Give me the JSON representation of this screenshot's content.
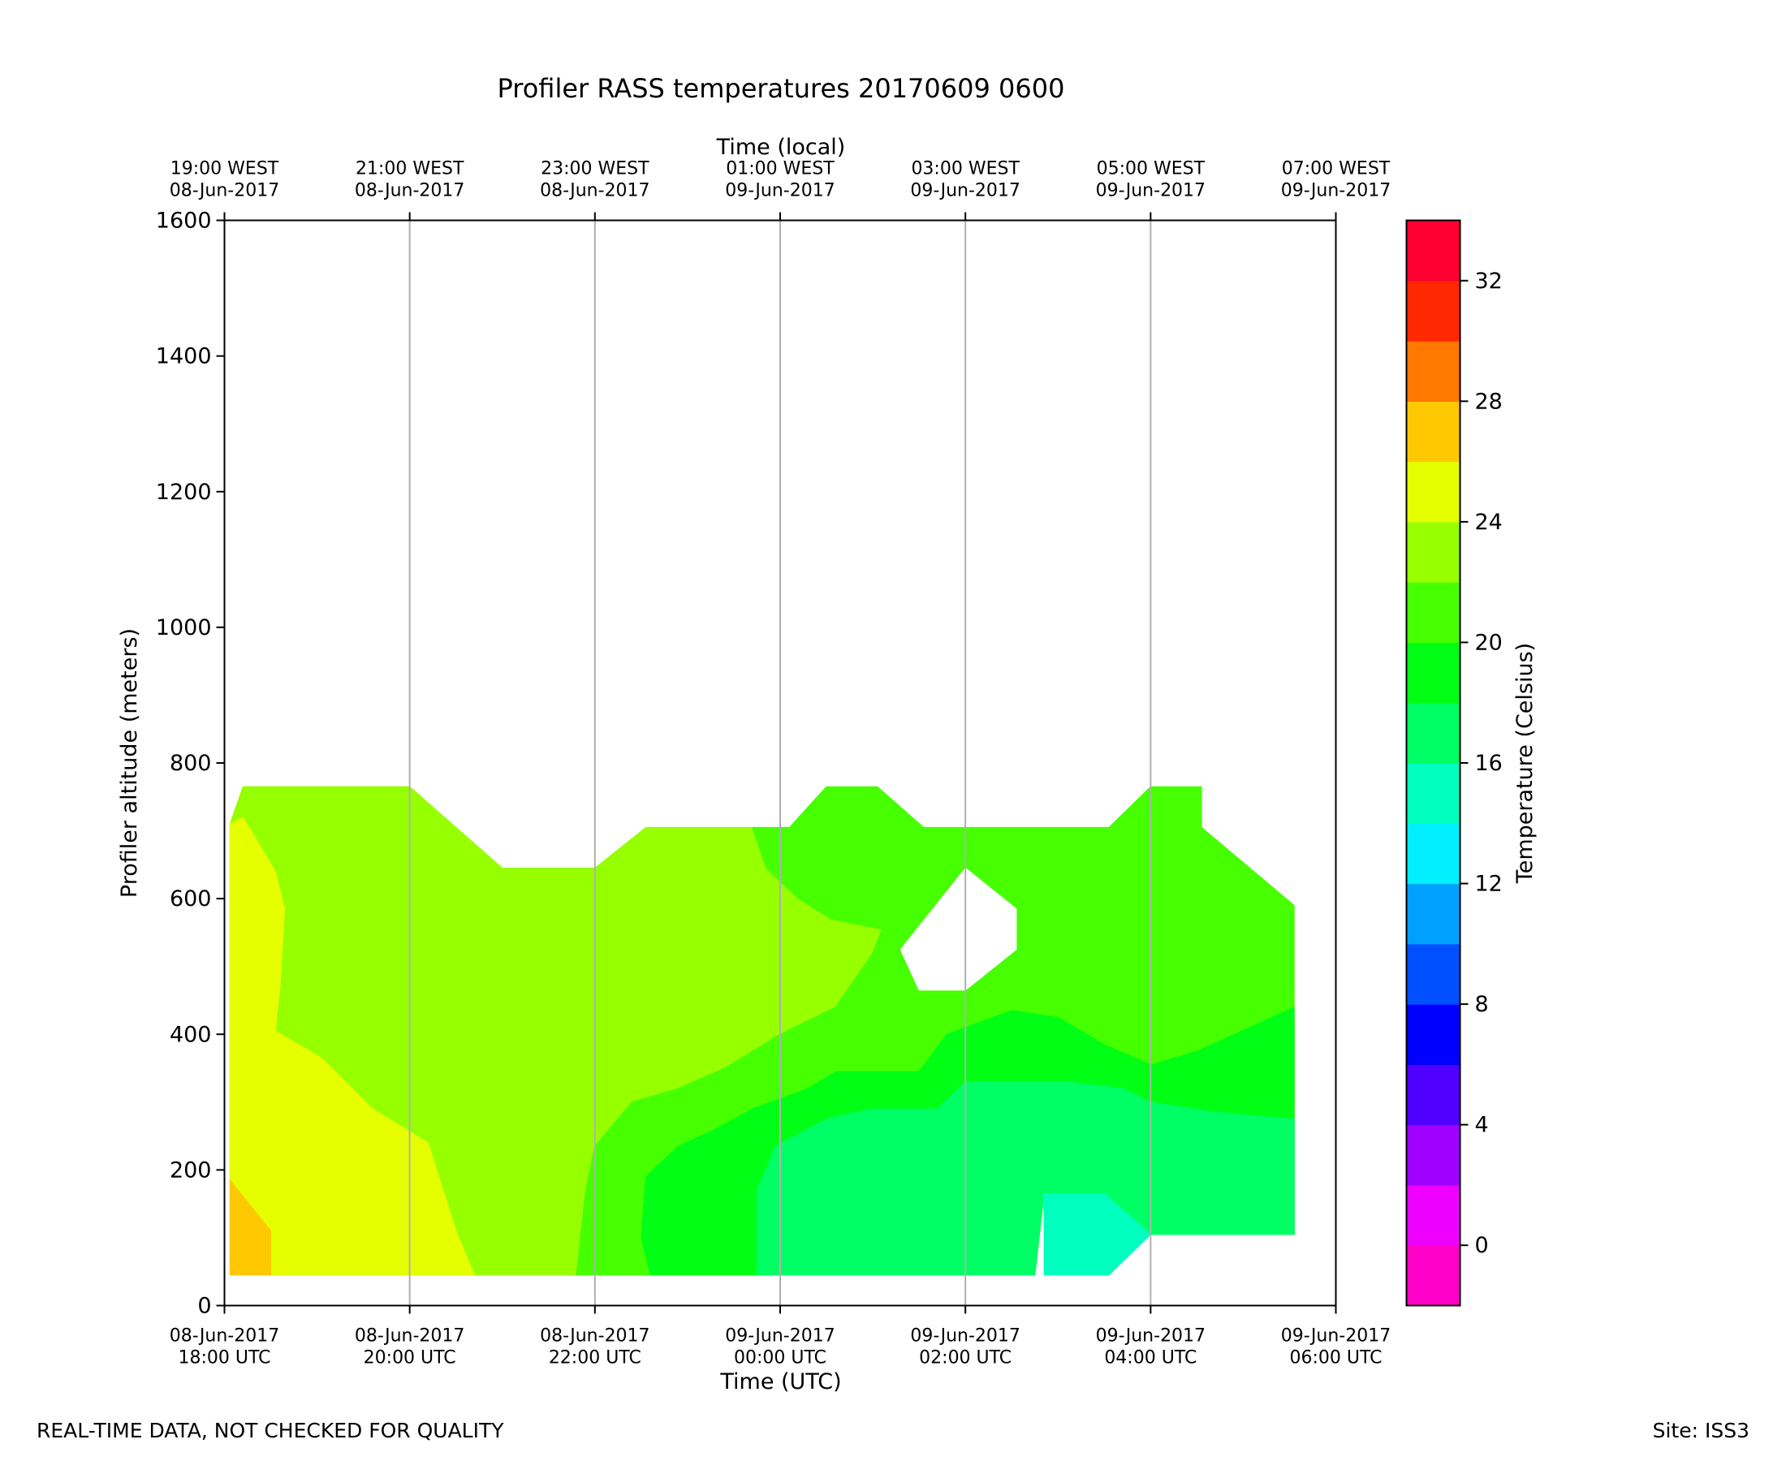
{
  "chart_data": {
    "type": "contour",
    "title": "Profiler RASS temperatures 20170609 0600",
    "xlabel": "Time (UTC)",
    "xlabel_top": "Time (local)",
    "ylabel": "Profiler altitude (meters)",
    "ylim": [
      0,
      1600
    ],
    "xlim_hours_since_start": [
      0,
      12
    ],
    "yticks": [
      0,
      200,
      400,
      600,
      800,
      1000,
      1200,
      1400,
      1600
    ],
    "xticks_bottom": [
      {
        "h": 0,
        "date": "08-Jun-2017",
        "time": "18:00 UTC"
      },
      {
        "h": 2,
        "date": "08-Jun-2017",
        "time": "20:00 UTC"
      },
      {
        "h": 4,
        "date": "08-Jun-2017",
        "time": "22:00 UTC"
      },
      {
        "h": 6,
        "date": "09-Jun-2017",
        "time": "00:00 UTC"
      },
      {
        "h": 8,
        "date": "09-Jun-2017",
        "time": "02:00 UTC"
      },
      {
        "h": 10,
        "date": "09-Jun-2017",
        "time": "04:00 UTC"
      },
      {
        "h": 12,
        "date": "09-Jun-2017",
        "time": "06:00 UTC"
      }
    ],
    "xticks_top": [
      {
        "h": 0,
        "time": "19:00 WEST",
        "date": "08-Jun-2017"
      },
      {
        "h": 2,
        "time": "21:00 WEST",
        "date": "08-Jun-2017"
      },
      {
        "h": 4,
        "time": "23:00 WEST",
        "date": "08-Jun-2017"
      },
      {
        "h": 6,
        "time": "01:00 WEST",
        "date": "09-Jun-2017"
      },
      {
        "h": 8,
        "time": "03:00 WEST",
        "date": "09-Jun-2017"
      },
      {
        "h": 10,
        "time": "05:00 WEST",
        "date": "09-Jun-2017"
      },
      {
        "h": 12,
        "time": "07:00 WEST",
        "date": "09-Jun-2017"
      }
    ],
    "grid": "vertical",
    "colorbar": {
      "label": "Temperature (Celsius)",
      "range": [
        -2,
        34
      ],
      "tick_values": [
        0,
        4,
        8,
        12,
        16,
        20,
        24,
        28,
        32
      ],
      "levels": [
        {
          "from": -2,
          "to": 0,
          "color": "#ff00c8"
        },
        {
          "from": 0,
          "to": 2,
          "color": "#ee00ff"
        },
        {
          "from": 2,
          "to": 4,
          "color": "#a000ff"
        },
        {
          "from": 4,
          "to": 6,
          "color": "#5000ff"
        },
        {
          "from": 6,
          "to": 8,
          "color": "#0000ff"
        },
        {
          "from": 8,
          "to": 10,
          "color": "#0050ff"
        },
        {
          "from": 10,
          "to": 12,
          "color": "#00a0ff"
        },
        {
          "from": 12,
          "to": 14,
          "color": "#00f0ff"
        },
        {
          "from": 14,
          "to": 16,
          "color": "#00ffbe"
        },
        {
          "from": 16,
          "to": 18,
          "color": "#00ff64"
        },
        {
          "from": 18,
          "to": 20,
          "color": "#00ff14"
        },
        {
          "from": 20,
          "to": 22,
          "color": "#46ff00"
        },
        {
          "from": 22,
          "to": 24,
          "color": "#96ff00"
        },
        {
          "from": 24,
          "to": 26,
          "color": "#e6ff00"
        },
        {
          "from": 26,
          "to": 28,
          "color": "#ffc800"
        },
        {
          "from": 28,
          "to": 30,
          "color": "#ff7800"
        },
        {
          "from": 30,
          "to": 32,
          "color": "#ff2800"
        },
        {
          "from": 32,
          "to": 34,
          "color": "#ff0032"
        }
      ]
    },
    "regions": [
      {
        "temp_band": "22-24",
        "color": "#96ff00",
        "points": [
          [
            0.06,
            710
          ],
          [
            0.2,
            765
          ],
          [
            2.0,
            765
          ],
          [
            3.0,
            645
          ],
          [
            4.0,
            645
          ],
          [
            4.55,
            705
          ],
          [
            5.7,
            705
          ],
          [
            5.85,
            645
          ],
          [
            6.2,
            600
          ],
          [
            6.55,
            570
          ],
          [
            7.1,
            555
          ],
          [
            7.0,
            520
          ],
          [
            6.6,
            440
          ],
          [
            6.0,
            400
          ],
          [
            5.4,
            350
          ],
          [
            4.9,
            320
          ],
          [
            4.4,
            300
          ],
          [
            4.0,
            235
          ],
          [
            3.9,
            170
          ],
          [
            3.8,
            45
          ],
          [
            0.06,
            45
          ]
        ]
      },
      {
        "temp_band": "24-26",
        "color": "#e6ff00",
        "points": [
          [
            0.06,
            710
          ],
          [
            0.2,
            720
          ],
          [
            0.55,
            640
          ],
          [
            0.65,
            585
          ],
          [
            0.6,
            470
          ],
          [
            0.55,
            405
          ],
          [
            1.05,
            365
          ],
          [
            1.6,
            290
          ],
          [
            2.2,
            240
          ],
          [
            2.5,
            110
          ],
          [
            2.7,
            45
          ],
          [
            0.06,
            45
          ]
        ]
      },
      {
        "temp_band": "26-28",
        "color": "#ffc800",
        "points": [
          [
            0.06,
            185
          ],
          [
            0.5,
            110
          ],
          [
            0.5,
            45
          ],
          [
            0.06,
            45
          ]
        ]
      },
      {
        "temp_band": "20-22",
        "color": "#46ff00",
        "points": [
          [
            5.7,
            705
          ],
          [
            6.1,
            705
          ],
          [
            6.5,
            765
          ],
          [
            7.05,
            765
          ],
          [
            7.55,
            705
          ],
          [
            9.55,
            705
          ],
          [
            10.0,
            765
          ],
          [
            10.55,
            765
          ],
          [
            10.55,
            705
          ],
          [
            11.55,
            590
          ],
          [
            11.55,
            105
          ],
          [
            10.0,
            105
          ],
          [
            9.5,
            165
          ],
          [
            8.85,
            165
          ],
          [
            8.75,
            45
          ],
          [
            3.8,
            45
          ],
          [
            3.9,
            170
          ],
          [
            4.0,
            235
          ],
          [
            4.4,
            300
          ],
          [
            4.9,
            320
          ],
          [
            5.4,
            350
          ],
          [
            6.0,
            400
          ],
          [
            6.6,
            440
          ],
          [
            7.0,
            520
          ],
          [
            7.1,
            555
          ],
          [
            6.55,
            570
          ],
          [
            6.2,
            600
          ],
          [
            5.85,
            645
          ]
        ]
      },
      {
        "temp_band": "18-20",
        "color": "#00ff14",
        "points": [
          [
            4.6,
            45
          ],
          [
            4.5,
            100
          ],
          [
            4.55,
            190
          ],
          [
            4.9,
            235
          ],
          [
            5.3,
            260
          ],
          [
            5.7,
            290
          ],
          [
            6.3,
            320
          ],
          [
            6.6,
            345
          ],
          [
            7.5,
            345
          ],
          [
            7.8,
            400
          ],
          [
            8.5,
            435
          ],
          [
            9.0,
            425
          ],
          [
            9.5,
            385
          ],
          [
            10.0,
            355
          ],
          [
            10.5,
            375
          ],
          [
            11.15,
            415
          ],
          [
            11.55,
            440
          ],
          [
            11.55,
            105
          ],
          [
            10.0,
            105
          ],
          [
            9.5,
            165
          ],
          [
            8.85,
            165
          ],
          [
            8.75,
            45
          ]
        ]
      },
      {
        "temp_band": "16-18",
        "color": "#00ff64",
        "points": [
          [
            5.75,
            45
          ],
          [
            5.75,
            170
          ],
          [
            5.95,
            235
          ],
          [
            6.5,
            275
          ],
          [
            7.0,
            290
          ],
          [
            7.7,
            290
          ],
          [
            8.0,
            330
          ],
          [
            9.1,
            330
          ],
          [
            9.7,
            320
          ],
          [
            10.0,
            300
          ],
          [
            10.7,
            285
          ],
          [
            11.55,
            275
          ],
          [
            11.55,
            105
          ],
          [
            10.0,
            105
          ],
          [
            9.5,
            165
          ],
          [
            8.85,
            165
          ],
          [
            8.75,
            45
          ]
        ]
      },
      {
        "temp_band": "14-16",
        "color": "#00ffbe",
        "points": [
          [
            8.85,
            45
          ],
          [
            8.85,
            165
          ],
          [
            9.5,
            165
          ],
          [
            10.0,
            105
          ],
          [
            9.55,
            45
          ]
        ]
      },
      {
        "temp_band": "missing",
        "color": "#ffffff",
        "points": [
          [
            7.3,
            525
          ],
          [
            8.0,
            645
          ],
          [
            8.55,
            585
          ],
          [
            8.55,
            525
          ],
          [
            8.0,
            465
          ],
          [
            7.5,
            465
          ]
        ]
      }
    ]
  },
  "footer": {
    "left": "REAL-TIME DATA, NOT CHECKED FOR QUALITY",
    "right": "Site: ISS3"
  }
}
